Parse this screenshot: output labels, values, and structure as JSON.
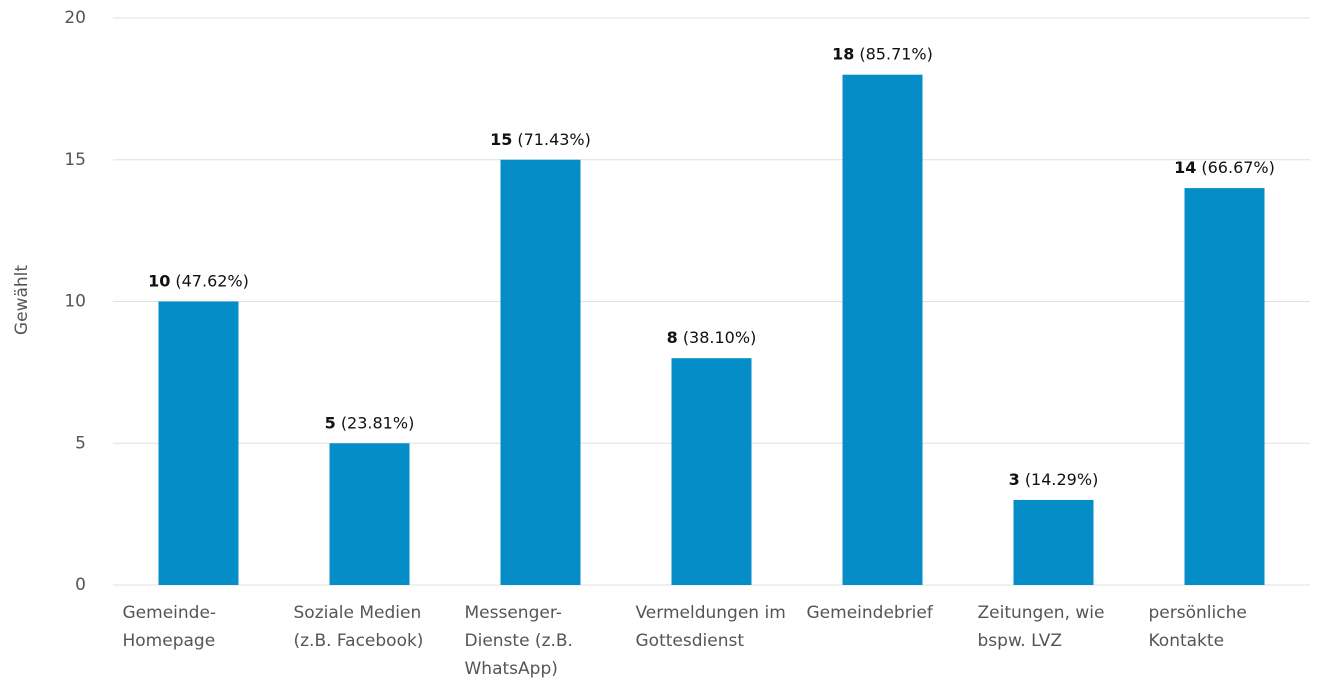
{
  "chart_data": {
    "type": "bar",
    "ylabel": "Gewählt",
    "categories": [
      "Gemeinde-Homepage",
      "Soziale Medien (z.B. Facebook)",
      "Messenger-Dienste (z.B. WhatsApp)",
      "Vermeldungen im Gottesdienst",
      "Gemeindebrief",
      "Zeitungen, wie bspw. LVZ",
      "persönliche Kontakte"
    ],
    "values": [
      10,
      5,
      15,
      8,
      18,
      3,
      14
    ],
    "percent_labels": [
      "(47.62%)",
      "(23.81%)",
      "(71.43%)",
      "(38.10%)",
      "(85.71%)",
      "(14.29%)",
      "(66.67%)"
    ],
    "color": "#058dc7",
    "ylim": [
      0,
      20
    ],
    "yticks": [
      0,
      5,
      10,
      15,
      20
    ],
    "grid": true
  }
}
